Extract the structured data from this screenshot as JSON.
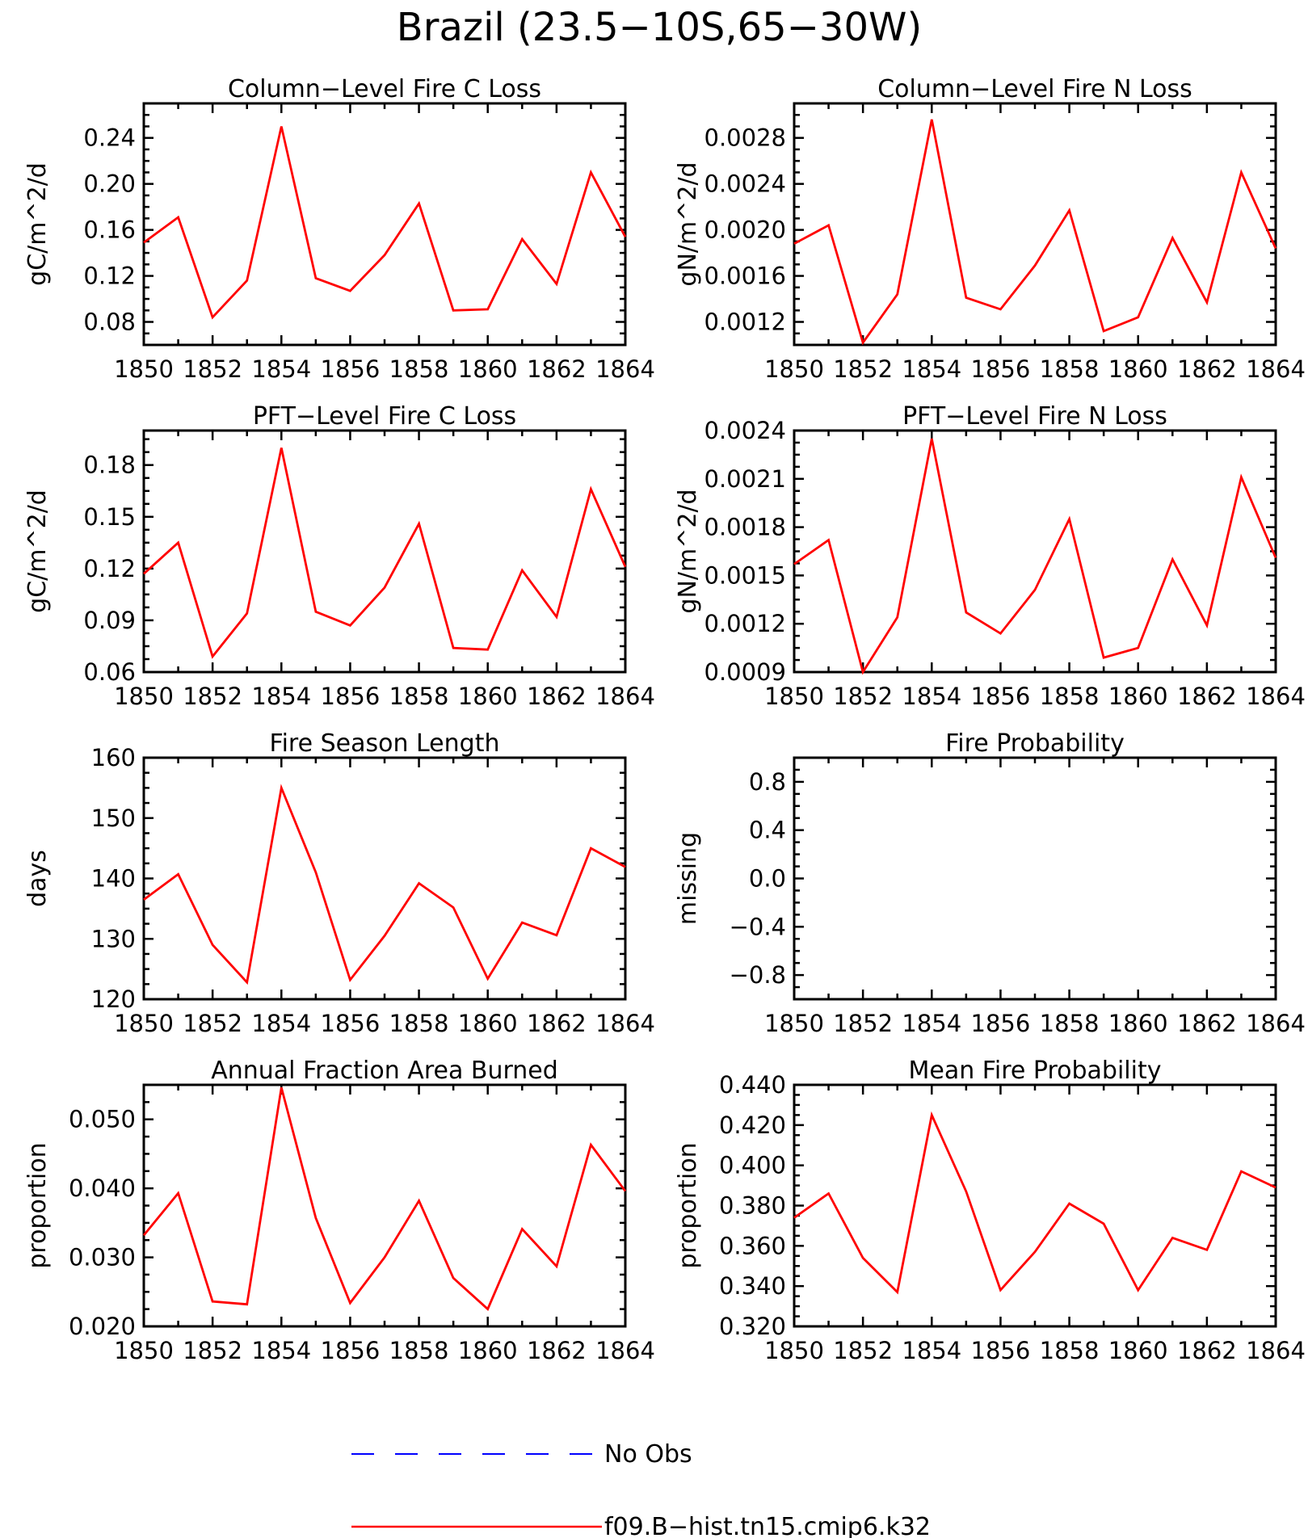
{
  "figure": {
    "title": "Brazil (23.5−10S,65−30W)"
  },
  "legend": [
    {
      "label": "No Obs",
      "color": "#0000ff",
      "dash": true
    },
    {
      "label": "f09.B−hist.tn15.cmip6.k32",
      "color": "#ff0000",
      "dash": false
    }
  ],
  "chart_data": [
    {
      "type": "line",
      "title": "Column−Level Fire C Loss",
      "ylabel": "gC/m^2/d",
      "xlim": [
        1850,
        1864
      ],
      "xticks": [
        1850,
        1852,
        1854,
        1856,
        1858,
        1860,
        1862,
        1864
      ],
      "ylim": [
        0.06,
        0.27
      ],
      "yticks": [
        "0.08",
        "0.12",
        "0.16",
        "0.20",
        "0.24"
      ],
      "series": [
        {
          "color": "#ff0000",
          "x": [
            1850,
            1851,
            1852,
            1853,
            1854,
            1855,
            1856,
            1857,
            1858,
            1859,
            1860,
            1861,
            1862,
            1863,
            1864
          ],
          "y": [
            0.149,
            0.171,
            0.084,
            0.116,
            0.25,
            0.118,
            0.107,
            0.138,
            0.183,
            0.09,
            0.091,
            0.152,
            0.113,
            0.21,
            0.154
          ]
        }
      ]
    },
    {
      "type": "line",
      "title": "Column−Level Fire N Loss",
      "ylabel": "gN/m^2/d",
      "xlim": [
        1850,
        1864
      ],
      "xticks": [
        1850,
        1852,
        1854,
        1856,
        1858,
        1860,
        1862,
        1864
      ],
      "ylim": [
        0.001,
        0.0031
      ],
      "yticks": [
        "0.0012",
        "0.0016",
        "0.0020",
        "0.0024",
        "0.0028"
      ],
      "series": [
        {
          "color": "#ff0000",
          "x": [
            1850,
            1851,
            1852,
            1853,
            1854,
            1855,
            1856,
            1857,
            1858,
            1859,
            1860,
            1861,
            1862,
            1863,
            1864
          ],
          "y": [
            0.00188,
            0.00204,
            0.00102,
            0.00144,
            0.00296,
            0.00141,
            0.00131,
            0.00169,
            0.00217,
            0.00112,
            0.00124,
            0.00193,
            0.00137,
            0.0025,
            0.00184
          ]
        }
      ]
    },
    {
      "type": "line",
      "title": "PFT−Level Fire C Loss",
      "ylabel": "gC/m^2/d",
      "xlim": [
        1850,
        1864
      ],
      "xticks": [
        1850,
        1852,
        1854,
        1856,
        1858,
        1860,
        1862,
        1864
      ],
      "ylim": [
        0.06,
        0.2
      ],
      "yticks": [
        "0.06",
        "0.09",
        "0.12",
        "0.15",
        "0.18"
      ],
      "series": [
        {
          "color": "#ff0000",
          "x": [
            1850,
            1851,
            1852,
            1853,
            1854,
            1855,
            1856,
            1857,
            1858,
            1859,
            1860,
            1861,
            1862,
            1863,
            1864
          ],
          "y": [
            0.117,
            0.135,
            0.069,
            0.094,
            0.19,
            0.095,
            0.087,
            0.109,
            0.146,
            0.074,
            0.073,
            0.119,
            0.092,
            0.166,
            0.121
          ]
        }
      ]
    },
    {
      "type": "line",
      "title": "PFT−Level Fire N Loss",
      "ylabel": "gN/m^2/d",
      "xlim": [
        1850,
        1864
      ],
      "xticks": [
        1850,
        1852,
        1854,
        1856,
        1858,
        1860,
        1862,
        1864
      ],
      "ylim": [
        0.0009,
        0.0024
      ],
      "yticks": [
        "0.0009",
        "0.0012",
        "0.0015",
        "0.0018",
        "0.0021",
        "0.0024"
      ],
      "series": [
        {
          "color": "#ff0000",
          "x": [
            1850,
            1851,
            1852,
            1853,
            1854,
            1855,
            1856,
            1857,
            1858,
            1859,
            1860,
            1861,
            1862,
            1863,
            1864
          ],
          "y": [
            0.00157,
            0.00172,
            0.0009,
            0.00124,
            0.00235,
            0.00127,
            0.00114,
            0.00141,
            0.00185,
            0.00099,
            0.00105,
            0.0016,
            0.00119,
            0.00211,
            0.00161
          ]
        }
      ]
    },
    {
      "type": "line",
      "title": "Fire Season Length",
      "ylabel": "days",
      "xlim": [
        1850,
        1864
      ],
      "xticks": [
        1850,
        1852,
        1854,
        1856,
        1858,
        1860,
        1862,
        1864
      ],
      "ylim": [
        120,
        160
      ],
      "yticks": [
        "120",
        "130",
        "140",
        "150",
        "160"
      ],
      "series": [
        {
          "color": "#ff0000",
          "x": [
            1850,
            1851,
            1852,
            1853,
            1854,
            1855,
            1856,
            1857,
            1858,
            1859,
            1860,
            1861,
            1862,
            1863,
            1864
          ],
          "y": [
            136.5,
            140.7,
            129.0,
            122.8,
            155.0,
            141.0,
            123.2,
            130.5,
            139.2,
            135.2,
            123.4,
            132.7,
            130.6,
            145.0,
            141.9
          ]
        }
      ]
    },
    {
      "type": "line",
      "title": "Fire Probability",
      "ylabel": "missing",
      "xlim": [
        1850,
        1864
      ],
      "xticks": [
        1850,
        1852,
        1854,
        1856,
        1858,
        1860,
        1862,
        1864
      ],
      "ylim": [
        -1,
        1
      ],
      "yticks": [
        "−0.8",
        "−0.4",
        "0.0",
        "0.4",
        "0.8"
      ],
      "series": []
    },
    {
      "type": "line",
      "title": "Annual Fraction Area Burned",
      "ylabel": "proportion",
      "xlim": [
        1850,
        1864
      ],
      "xticks": [
        1850,
        1852,
        1854,
        1856,
        1858,
        1860,
        1862,
        1864
      ],
      "ylim": [
        0.02,
        0.055
      ],
      "yticks": [
        "0.020",
        "0.030",
        "0.040",
        "0.050"
      ],
      "series": [
        {
          "color": "#ff0000",
          "x": [
            1850,
            1851,
            1852,
            1853,
            1854,
            1855,
            1856,
            1857,
            1858,
            1859,
            1860,
            1861,
            1862,
            1863,
            1864
          ],
          "y": [
            0.0332,
            0.0393,
            0.0236,
            0.0232,
            0.0546,
            0.0357,
            0.0234,
            0.03,
            0.0382,
            0.027,
            0.0225,
            0.0341,
            0.0287,
            0.0463,
            0.0396
          ]
        }
      ]
    },
    {
      "type": "line",
      "title": "Mean Fire Probability",
      "ylabel": "proportion",
      "xlim": [
        1850,
        1864
      ],
      "xticks": [
        1850,
        1852,
        1854,
        1856,
        1858,
        1860,
        1862,
        1864
      ],
      "ylim": [
        0.32,
        0.44
      ],
      "yticks": [
        "0.320",
        "0.340",
        "0.360",
        "0.380",
        "0.400",
        "0.420",
        "0.440"
      ],
      "series": [
        {
          "color": "#ff0000",
          "x": [
            1850,
            1851,
            1852,
            1853,
            1854,
            1855,
            1856,
            1857,
            1858,
            1859,
            1860,
            1861,
            1862,
            1863,
            1864
          ],
          "y": [
            0.374,
            0.386,
            0.354,
            0.337,
            0.425,
            0.387,
            0.338,
            0.357,
            0.381,
            0.371,
            0.338,
            0.364,
            0.358,
            0.397,
            0.389
          ]
        }
      ]
    }
  ]
}
